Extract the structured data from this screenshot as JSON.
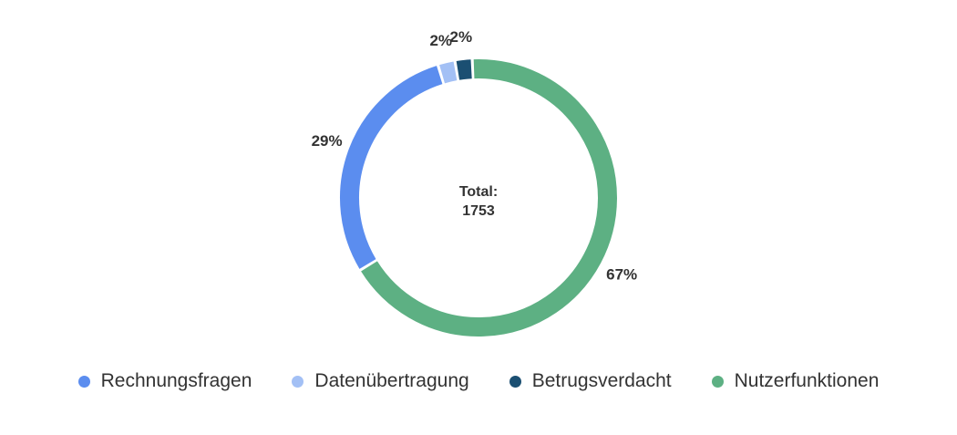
{
  "chart_data": {
    "type": "pie",
    "variant": "donut",
    "center_label": "Total:",
    "center_value": "1753",
    "categories": [
      "Rechnungsfragen",
      "Datenübertragung",
      "Betrugsverdacht",
      "Nutzerfunktionen"
    ],
    "values": [
      29,
      2,
      2,
      67
    ],
    "value_labels": [
      "29%",
      "2%",
      "2%",
      "67%"
    ],
    "colors": [
      "#5B8DEF",
      "#A3C0F5",
      "#1B4F72",
      "#5DB083"
    ],
    "legend_position": "bottom"
  }
}
